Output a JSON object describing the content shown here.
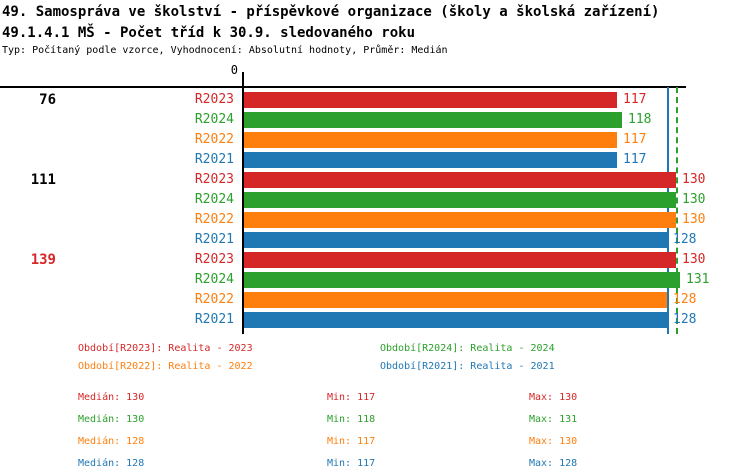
{
  "header": {
    "title": "49. Samospráva ve školství - příspěvkové organizace (školy a školská zařízení)",
    "subtitle": "49.1.4.1 MŠ - Počet tříd k 30.9. sledovaného roku",
    "meta": "Typ: Počítaný podle vzorce, Vyhodnocení: Absolutní hodnoty, Průměr: Medián"
  },
  "colors": {
    "red": "#d62728",
    "green": "#2ca02c",
    "orange": "#ff7f0e",
    "blue": "#1f77b4",
    "axis": "#000000"
  },
  "chart_data": {
    "type": "bar",
    "orientation": "horizontal",
    "title": "49.1.4.1 MŠ - Počet tříd k 30.9. sledovaného roku",
    "value_axis": {
      "zero_label": "0",
      "min": 0,
      "grid": false
    },
    "groups": [
      {
        "label": "76",
        "label_color": "#000000"
      },
      {
        "label": "111",
        "label_color": "#000000"
      },
      {
        "label": "139",
        "label_color": "#d62728"
      }
    ],
    "series": [
      {
        "id": "R2023",
        "label": "R2023",
        "color": "#d62728",
        "values": [
          117,
          130,
          130
        ],
        "median": 130,
        "min": 117,
        "max": 130
      },
      {
        "id": "R2024",
        "label": "R2024",
        "color": "#2ca02c",
        "values": [
          118,
          130,
          131
        ],
        "median": 130,
        "min": 118,
        "max": 131
      },
      {
        "id": "R2022",
        "label": "R2022",
        "color": "#ff7f0e",
        "values": [
          117,
          130,
          128
        ],
        "median": 128,
        "min": 117,
        "max": 130
      },
      {
        "id": "R2021",
        "label": "R2021",
        "color": "#1f77b4",
        "values": [
          117,
          128,
          128
        ],
        "median": 128,
        "min": 117,
        "max": 128
      }
    ],
    "reference_lines": [
      {
        "value": 128,
        "color": "#1f77b4",
        "style": "solid"
      },
      {
        "value": 130,
        "color": "#2ca02c",
        "style": "dashed"
      }
    ]
  },
  "legend": [
    {
      "label": "Období[R2023]: Realita - 2023",
      "color": "#d62728"
    },
    {
      "label": "Období[R2024]: Realita - 2024",
      "color": "#2ca02c"
    },
    {
      "label": "Období[R2022]: Realita - 2022",
      "color": "#ff7f0e"
    },
    {
      "label": "Období[R2021]: Realita - 2021",
      "color": "#1f77b4"
    }
  ],
  "stats": [
    {
      "color": "#d62728",
      "median": "Medián: 130",
      "min": "Min: 117",
      "max": "Max: 130"
    },
    {
      "color": "#2ca02c",
      "median": "Medián: 130",
      "min": "Min: 118",
      "max": "Max: 131"
    },
    {
      "color": "#ff7f0e",
      "median": "Medián: 128",
      "min": "Min: 117",
      "max": "Max: 130"
    },
    {
      "color": "#1f77b4",
      "median": "Medián: 128",
      "min": "Min: 117",
      "max": "Max: 128"
    }
  ]
}
